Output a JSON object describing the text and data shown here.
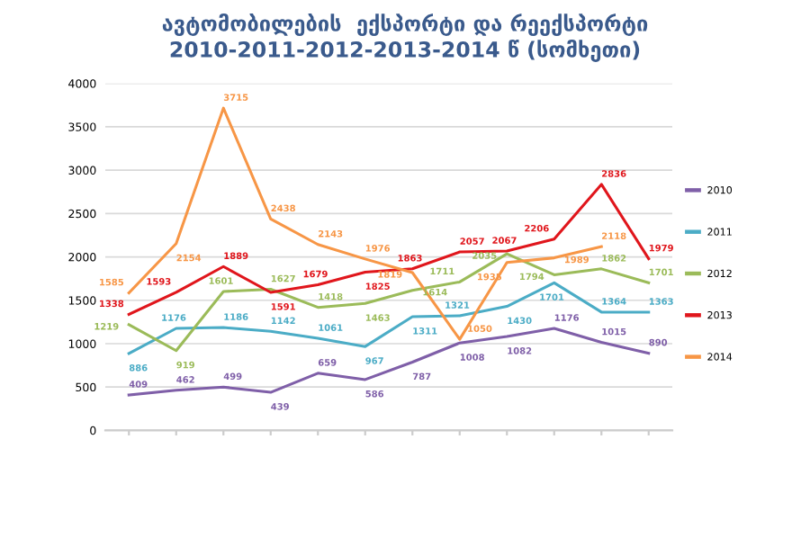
{
  "chart_data": {
    "type": "line",
    "title": "ავტომობილების  ექსპორტი და რეექსპორტი\n2010-2011-2012-2013-2014 წ (სომხეთი)",
    "categories": [
      null,
      null,
      null,
      null,
      null,
      null,
      null,
      null,
      null,
      null,
      null,
      null
    ],
    "series": [
      {
        "name": "2010",
        "color": "#7f5fa8",
        "values": [
          409,
          462,
          499,
          439,
          659,
          586,
          787,
          1008,
          1082,
          1176,
          1015,
          890
        ]
      },
      {
        "name": "2011",
        "color": "#4bacc6",
        "values": [
          886,
          1176,
          1186,
          1142,
          1061,
          967,
          1311,
          1321,
          1430,
          1701,
          1364,
          1363
        ]
      },
      {
        "name": "2012",
        "color": "#9bbb59",
        "values": [
          1219,
          919,
          1601,
          1627,
          1418,
          1463,
          1614,
          1711,
          2035,
          1794,
          1862,
          1701
        ]
      },
      {
        "name": "2013",
        "color": "#e0161c",
        "values": [
          1338,
          1593,
          1889,
          1591,
          1679,
          1825,
          1863,
          2057,
          2067,
          2206,
          2836,
          1979
        ]
      },
      {
        "name": "2014",
        "color": "#f79646",
        "values": [
          1585,
          2154,
          3715,
          2438,
          2143,
          1976,
          1819,
          1050,
          1935,
          1989,
          2118,
          null
        ]
      }
    ],
    "ylim": [
      0,
      4000
    ],
    "yticks": [
      0,
      500,
      1000,
      1500,
      2000,
      2500,
      3000,
      3500,
      4000
    ],
    "grid": "y",
    "legend": "right",
    "data_labels": true,
    "marker": "none",
    "line_style": "solid"
  }
}
